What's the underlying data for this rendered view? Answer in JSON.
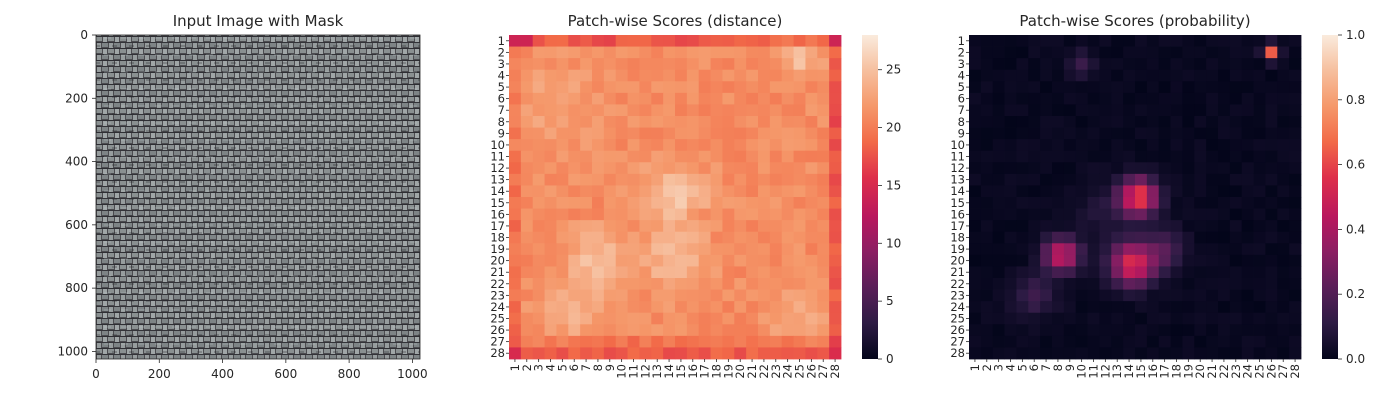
{
  "chart_data": [
    {
      "type": "image",
      "title": "Input Image with Mask",
      "xlim": [
        0,
        1024
      ],
      "ylim": [
        1024,
        0
      ],
      "xticks": [
        0,
        200,
        400,
        600,
        800,
        1000
      ],
      "yticks": [
        0,
        200,
        400,
        600,
        800,
        1000
      ],
      "image_description": "grey woven burlap fabric texture"
    },
    {
      "type": "heatmap",
      "title": "Patch-wise Scores (distance)",
      "rows": 28,
      "cols": 28,
      "colorbar": {
        "min": 0,
        "max": 28,
        "ticks": [
          0,
          5,
          10,
          15,
          20,
          25
        ]
      },
      "values_summary": "roughly 17-27 throughout; lower (~17-19) along top row, bottom rows and right column; higher (~24-27) in blobs near rows 2-3 cols 24-26, rows 13-16 cols 13-15 and rows 19-21 cols 7-9 and 13-15"
    },
    {
      "type": "heatmap",
      "title": "Patch-wise Scores (probability)",
      "rows": 28,
      "cols": 28,
      "colorbar": {
        "min": 0,
        "max": 1,
        "ticks": [
          0.0,
          0.2,
          0.4,
          0.6,
          0.8,
          1.0
        ]
      },
      "hotspots": [
        {
          "row": 2,
          "col": 26,
          "value": 0.65
        },
        {
          "row": 14,
          "col": 15,
          "value": 0.6
        },
        {
          "row": 15,
          "col": 14,
          "value": 0.5
        },
        {
          "row": 19,
          "col": 8,
          "value": 0.5
        },
        {
          "row": 20,
          "col": 14,
          "value": 0.55
        }
      ],
      "values_summary": "mostly near 0 (0.0-0.05) with clusters of 0.3-0.6 around rows 13-16 cols 13-16, rows 18-22 cols 7-9 and 13-17, and row 2 col 26"
    }
  ],
  "colors": {
    "rocket_stops": [
      "#03051a",
      "#2d1b44",
      "#5a1f59",
      "#8b1e63",
      "#b9185e",
      "#de2f4a",
      "#f26a48",
      "#f5986a",
      "#f6bf9e",
      "#faebdd"
    ]
  }
}
